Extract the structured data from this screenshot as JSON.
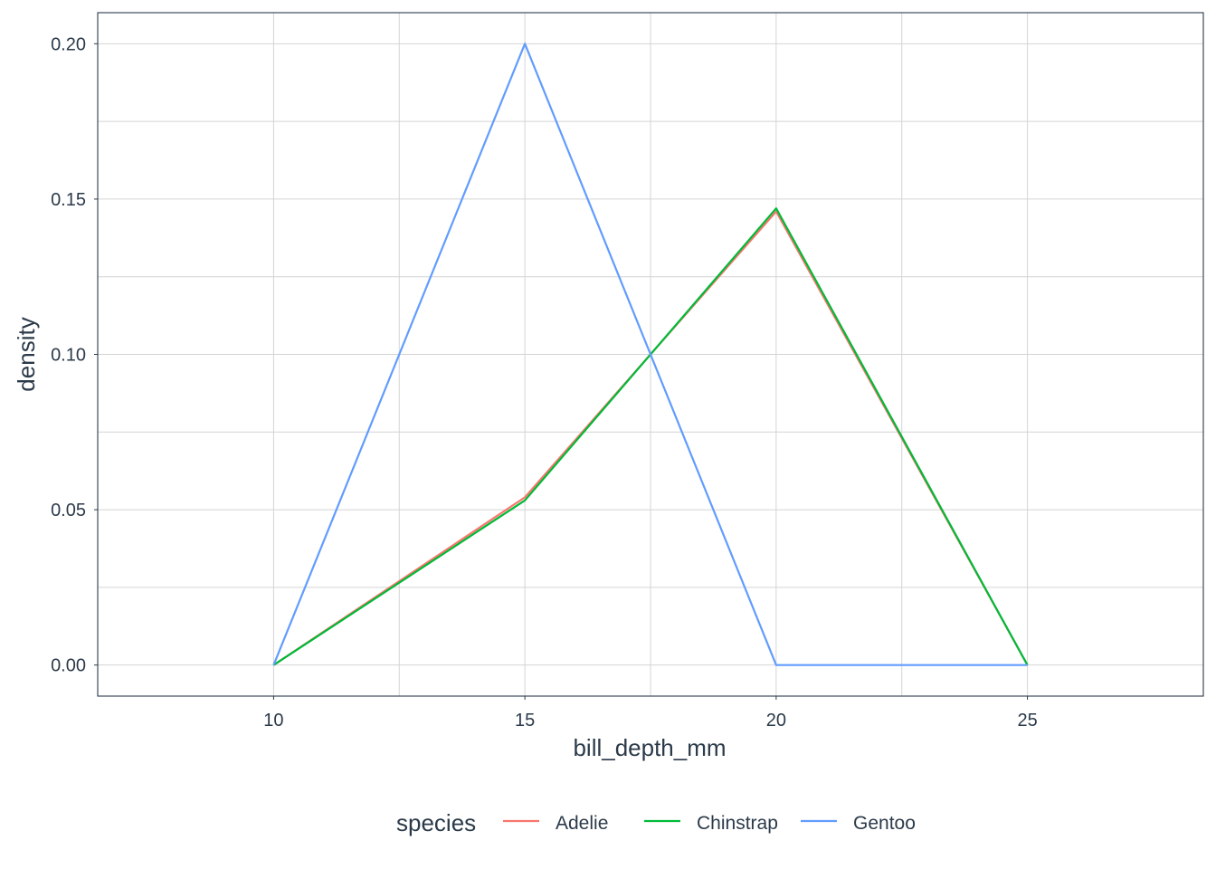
{
  "chart_data": {
    "type": "line",
    "xlabel": "bill_depth_mm",
    "ylabel": "density",
    "xlim": [
      6.5,
      28.5
    ],
    "ylim": [
      -0.01,
      0.21
    ],
    "x_ticks": [
      10,
      15,
      20,
      25
    ],
    "x_tick_labels": [
      "10",
      "15",
      "20",
      "25"
    ],
    "y_ticks": [
      0,
      0.05,
      0.1,
      0.15,
      0.2
    ],
    "y_tick_labels": [
      "0.00",
      "0.05",
      "0.10",
      "0.15",
      "0.20"
    ],
    "grid": true,
    "legend": {
      "title": "species",
      "position": "bottom"
    },
    "x": [
      10,
      15,
      20,
      25
    ],
    "series": [
      {
        "name": "Adelie",
        "color": "#F8766D",
        "values": [
          0,
          0.054,
          0.146,
          0
        ]
      },
      {
        "name": "Chinstrap",
        "color": "#00BA38",
        "values": [
          0,
          0.053,
          0.147,
          0
        ]
      },
      {
        "name": "Gentoo",
        "color": "#619CFF",
        "values": [
          0,
          0.2,
          0,
          0
        ]
      }
    ]
  },
  "colors": {
    "grid": "#d4d4d4",
    "panel_border": "#2b3a4a",
    "text": "#2b3a4a"
  }
}
